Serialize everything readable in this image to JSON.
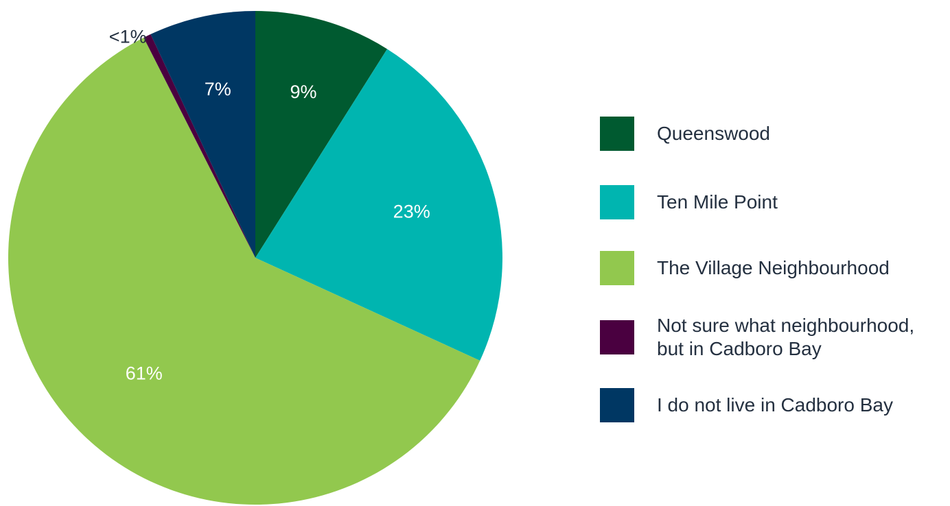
{
  "chart_data": {
    "type": "pie",
    "title": "",
    "start_angle_deg": 0,
    "direction": "clockwise",
    "slices": [
      {
        "label": "Queenswood",
        "value": 9,
        "value_label": "9%",
        "color": "#005a30",
        "label_color": "#ffffff"
      },
      {
        "label": "Ten Mile Point",
        "value": 23,
        "value_label": "23%",
        "color": "#00b5b0",
        "label_color": "#ffffff"
      },
      {
        "label": "The Village Neighbourhood",
        "value": 61,
        "value_label": "61%",
        "color": "#92c84e",
        "label_color": "#ffffff"
      },
      {
        "label": "Not sure what neighbourhood,\nbut in Cadboro Bay",
        "value": 0.5,
        "value_label": "<1%",
        "color": "#4a0040",
        "label_color": "#243040"
      },
      {
        "label": "I do not live in Cadboro Bay",
        "value": 7,
        "value_label": "7%",
        "color": "#003763",
        "label_color": "#ffffff"
      }
    ],
    "legend": {
      "position": "right",
      "items": [
        "Queenswood",
        "Ten Mile Point",
        "The Village Neighbourhood",
        "Not sure what neighbourhood,\nbut in Cadboro Bay",
        "I do not live in Cadboro Bay"
      ]
    }
  }
}
